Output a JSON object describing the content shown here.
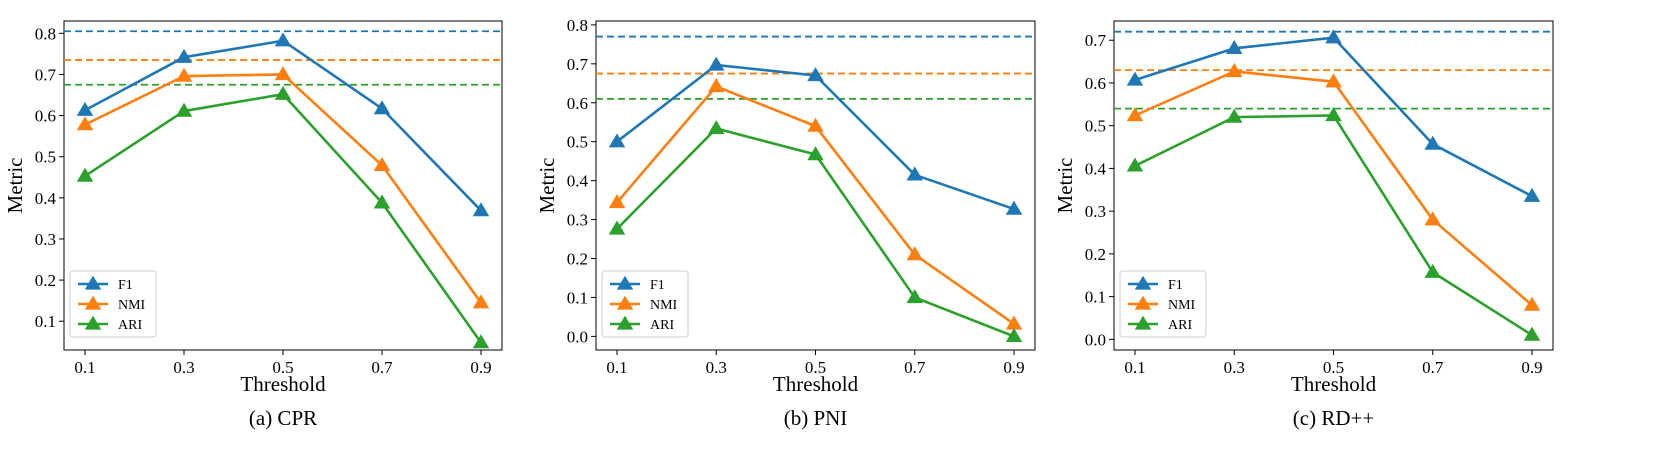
{
  "colors": {
    "F1": "#1f77b4",
    "NMI": "#ff7f0e",
    "ARI": "#2ca02c"
  },
  "chart_data": [
    {
      "type": "line",
      "caption": "(a) CPR",
      "xlabel": "Threshold",
      "ylabel": "Metric",
      "categories": [
        "0.1",
        "0.3",
        "0.5",
        "0.7",
        "0.9"
      ],
      "ylim": [
        0.03,
        0.83
      ],
      "yticks": [
        "0.1",
        "0.2",
        "0.3",
        "0.4",
        "0.5",
        "0.6",
        "0.7",
        "0.8"
      ],
      "series": [
        {
          "name": "F1",
          "values": [
            0.613,
            0.742,
            0.782,
            0.617,
            0.369
          ]
        },
        {
          "name": "NMI",
          "values": [
            0.578,
            0.696,
            0.7,
            0.479,
            0.145
          ]
        },
        {
          "name": "ARI",
          "values": [
            0.453,
            0.611,
            0.652,
            0.388,
            0.048
          ]
        }
      ],
      "baselines": [
        {
          "name": "F1",
          "value": 0.805
        },
        {
          "name": "NMI",
          "value": 0.735
        },
        {
          "name": "ARI",
          "value": 0.675
        }
      ],
      "legend": "lower-left"
    },
    {
      "type": "line",
      "caption": "(b) PNI",
      "xlabel": "Threshold",
      "ylabel": "Metric",
      "categories": [
        "0.1",
        "0.3",
        "0.5",
        "0.7",
        "0.9"
      ],
      "ylim": [
        -0.035,
        0.81
      ],
      "yticks": [
        "0.0",
        "0.1",
        "0.2",
        "0.3",
        "0.4",
        "0.5",
        "0.6",
        "0.7",
        "0.8"
      ],
      "series": [
        {
          "name": "F1",
          "values": [
            0.5,
            0.697,
            0.67,
            0.415,
            0.327
          ]
        },
        {
          "name": "NMI",
          "values": [
            0.344,
            0.642,
            0.54,
            0.21,
            0.032
          ]
        },
        {
          "name": "ARI",
          "values": [
            0.276,
            0.534,
            0.467,
            0.1,
            0.0
          ]
        }
      ],
      "baselines": [
        {
          "name": "F1",
          "value": 0.77
        },
        {
          "name": "NMI",
          "value": 0.675
        },
        {
          "name": "ARI",
          "value": 0.61
        }
      ],
      "legend": "lower-left"
    },
    {
      "type": "line",
      "caption": "(c) RD++",
      "xlabel": "Threshold",
      "ylabel": "Metric",
      "categories": [
        "0.1",
        "0.3",
        "0.5",
        "0.7",
        "0.9"
      ],
      "ylim": [
        -0.025,
        0.745
      ],
      "yticks": [
        "0.0",
        "0.1",
        "0.2",
        "0.3",
        "0.4",
        "0.5",
        "0.6",
        "0.7"
      ],
      "series": [
        {
          "name": "F1",
          "values": [
            0.607,
            0.681,
            0.706,
            0.457,
            0.335
          ]
        },
        {
          "name": "NMI",
          "values": [
            0.524,
            0.627,
            0.603,
            0.28,
            0.08
          ]
        },
        {
          "name": "ARI",
          "values": [
            0.406,
            0.52,
            0.524,
            0.157,
            0.01
          ]
        }
      ],
      "baselines": [
        {
          "name": "F1",
          "value": 0.72
        },
        {
          "name": "NMI",
          "value": 0.63
        },
        {
          "name": "ARI",
          "value": 0.54
        }
      ],
      "legend": "lower-left"
    }
  ]
}
